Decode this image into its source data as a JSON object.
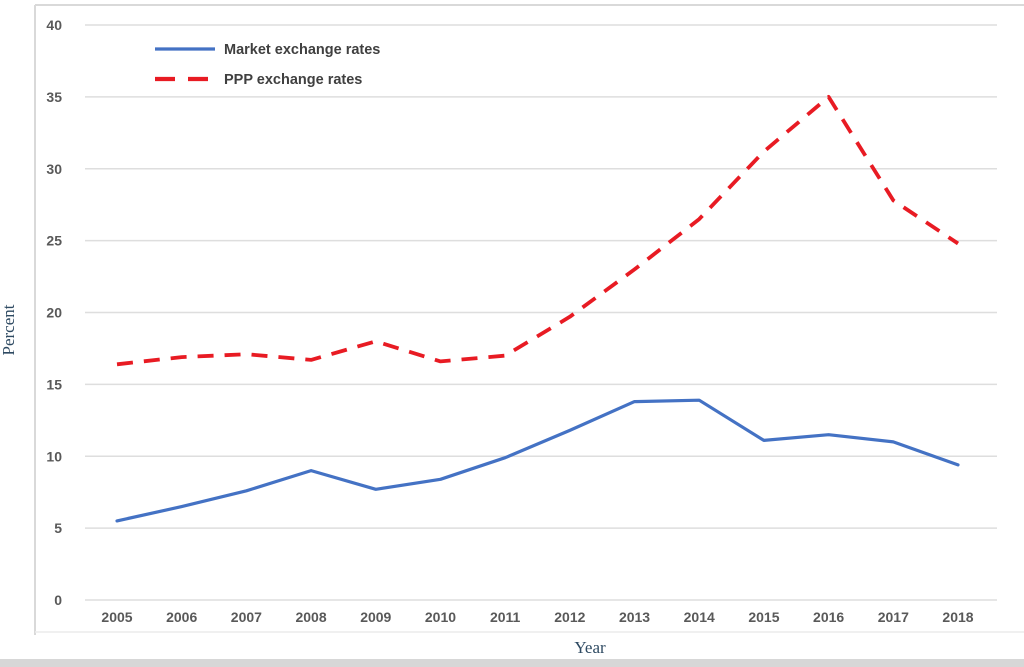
{
  "chart_data": {
    "type": "line",
    "title": "",
    "xlabel": "Year",
    "ylabel": "Percent",
    "x": [
      2005,
      2006,
      2007,
      2008,
      2009,
      2010,
      2011,
      2012,
      2013,
      2014,
      2015,
      2016,
      2017,
      2018
    ],
    "x_tick_labels": [
      "2005",
      "2006",
      "2007",
      "2008",
      "2009",
      "2010",
      "2011",
      "2012",
      "2013",
      "2014",
      "2015",
      "2016",
      "2017",
      "2018"
    ],
    "y_tick_labels": [
      "0",
      "5",
      "10",
      "15",
      "20",
      "25",
      "30",
      "35",
      "40"
    ],
    "ylim": [
      0,
      40
    ],
    "ytick_step": 5,
    "grid": true,
    "legend_position": "top-left",
    "series": [
      {
        "name": "Market exchange rates",
        "color": "#4472c4",
        "style": "solid",
        "values": [
          5.5,
          6.5,
          7.6,
          9.0,
          7.7,
          8.4,
          9.9,
          11.8,
          13.8,
          13.9,
          11.1,
          11.5,
          11.0,
          9.4
        ]
      },
      {
        "name": "PPP exchange rates",
        "color": "#e81b23",
        "style": "dashed",
        "values": [
          16.4,
          16.9,
          17.1,
          16.7,
          18.0,
          16.6,
          17.0,
          19.7,
          23.0,
          26.5,
          31.2,
          35.0,
          27.8,
          24.8
        ]
      }
    ]
  },
  "colors": {
    "grid": "#dedede",
    "tick_label": "#595959",
    "axis_title": "#2e4a62",
    "legend_text": "#404040",
    "figure_border": "#d9d9d9",
    "bottom_strip": "#d7d7d7"
  }
}
